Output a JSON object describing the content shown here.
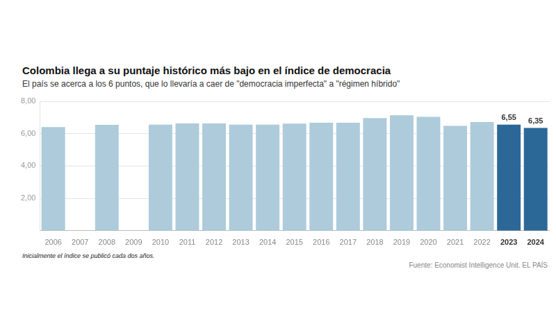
{
  "chart_data": {
    "type": "bar",
    "title": "Colombia llega a su puntaje histórico más bajo en el índice de democracia",
    "subtitle": "El país se acerca a los 6 puntos, que lo llevaría a caer de \"democracia imperfecta\" a \"régimen híbrido\"",
    "footnote": "Inicialmente el índice se publicó cada dos años.",
    "source": "Fuente: Economist Intelligence Unit. EL PAÍS",
    "categories": [
      "2006",
      "2007",
      "2008",
      "2009",
      "2010",
      "2011",
      "2012",
      "2013",
      "2014",
      "2015",
      "2016",
      "2017",
      "2018",
      "2019",
      "2020",
      "2021",
      "2022",
      "2023",
      "2024"
    ],
    "values": [
      6.4,
      null,
      6.54,
      null,
      6.55,
      6.63,
      6.63,
      6.55,
      6.55,
      6.62,
      6.67,
      6.67,
      6.96,
      7.13,
      7.04,
      6.48,
      6.72,
      6.55,
      6.35
    ],
    "value_labels": [
      null,
      null,
      null,
      null,
      null,
      null,
      null,
      null,
      null,
      null,
      null,
      null,
      null,
      null,
      null,
      null,
      null,
      "6,55",
      "6,35"
    ],
    "colors": [
      "#aecbdb",
      "#aecbdb",
      "#aecbdb",
      "#aecbdb",
      "#aecbdb",
      "#aecbdb",
      "#aecbdb",
      "#aecbdb",
      "#aecbdb",
      "#aecbdb",
      "#aecbdb",
      "#aecbdb",
      "#aecbdb",
      "#aecbdb",
      "#aecbdb",
      "#aecbdb",
      "#aecbdb",
      "#2c6897",
      "#2c6897"
    ],
    "ylim": [
      0,
      8
    ],
    "yticks": [
      {
        "value": 2,
        "label": "2,00"
      },
      {
        "value": 4,
        "label": "4,00"
      },
      {
        "value": 6,
        "label": "6,00"
      },
      {
        "value": 8,
        "label": "8,00"
      }
    ],
    "grid": true
  }
}
